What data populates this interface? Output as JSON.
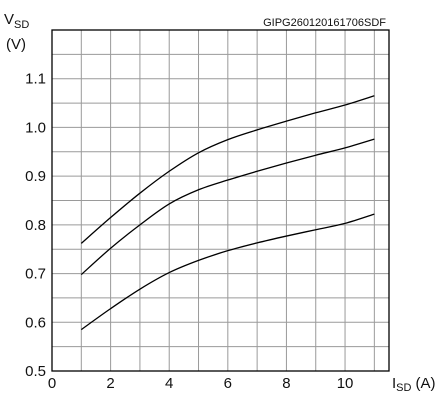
{
  "chart_data": {
    "type": "line",
    "code_label": "GIPG260120161706SDF",
    "ylabel": {
      "main": "V",
      "sub": "SD",
      "unit": "(V)"
    },
    "xlabel": {
      "main": "I",
      "sub": "SD",
      "unit": "(A)"
    },
    "xlim": [
      0,
      11.5
    ],
    "ylim": [
      0.5,
      1.2
    ],
    "xticks": [
      "0",
      "2",
      "4",
      "6",
      "8",
      "10"
    ],
    "yticks": [
      "0.5",
      "0.6",
      "0.7",
      "0.8",
      "0.9",
      "1.0",
      "1.1"
    ],
    "grid": true,
    "x": [
      1,
      2,
      3,
      4,
      5,
      6,
      7,
      8,
      9,
      10,
      11
    ],
    "series": [
      {
        "values": [
          0.762,
          0.815,
          0.865,
          0.91,
          0.948,
          0.975,
          0.995,
          1.013,
          1.03,
          1.046,
          1.065
        ]
      },
      {
        "values": [
          0.698,
          0.752,
          0.8,
          0.843,
          0.872,
          0.892,
          0.91,
          0.927,
          0.943,
          0.958,
          0.976
        ]
      },
      {
        "values": [
          0.585,
          0.628,
          0.668,
          0.702,
          0.727,
          0.747,
          0.763,
          0.777,
          0.79,
          0.803,
          0.822
        ]
      }
    ],
    "colors": {
      "line": "#000000",
      "grid": "#9a9a9a"
    }
  }
}
